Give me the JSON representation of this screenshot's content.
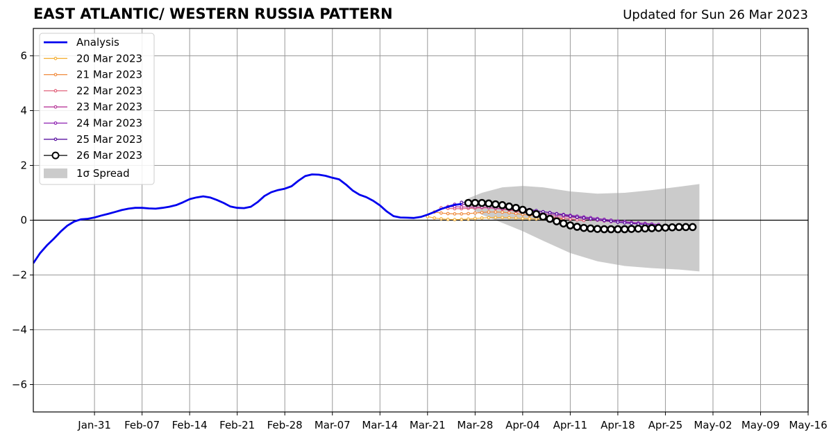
{
  "title": "EAST ATLANTIC/ WESTERN RUSSIA PATTERN",
  "updated": "Updated for Sun 26 Mar 2023",
  "chart_data": {
    "type": "line",
    "title": "EAST ATLANTIC/ WESTERN RUSSIA PATTERN",
    "xlabel": "",
    "ylabel": "",
    "xlim": [
      "2023-01-22",
      "2023-05-16"
    ],
    "ylim": [
      -7,
      7
    ],
    "grid": true,
    "legend_position": "top-left",
    "x_ticks": [
      "Jan-31",
      "Feb-07",
      "Feb-14",
      "Feb-21",
      "Feb-28",
      "Mar-07",
      "Mar-14",
      "Mar-21",
      "Mar-28",
      "Apr-04",
      "Apr-11",
      "Apr-18",
      "Apr-25",
      "May-02",
      "May-09",
      "May-16"
    ],
    "y_ticks": [
      "−6",
      "−4",
      "−2",
      "0",
      "2",
      "4",
      "6"
    ],
    "analysis": {
      "name": "Analysis",
      "color": "#0000ee",
      "start": "2023-01-22",
      "step_days": 1,
      "values": [
        -1.57,
        -1.2,
        -0.92,
        -0.68,
        -0.42,
        -0.2,
        -0.05,
        0.03,
        0.05,
        0.1,
        0.17,
        0.23,
        0.3,
        0.37,
        0.42,
        0.45,
        0.45,
        0.43,
        0.42,
        0.45,
        0.49,
        0.55,
        0.65,
        0.77,
        0.83,
        0.87,
        0.83,
        0.74,
        0.63,
        0.5,
        0.45,
        0.44,
        0.49,
        0.66,
        0.88,
        1.02,
        1.1,
        1.15,
        1.24,
        1.44,
        1.61,
        1.67,
        1.66,
        1.62,
        1.55,
        1.49,
        1.3,
        1.08,
        0.93,
        0.84,
        0.71,
        0.54,
        0.32,
        0.15,
        0.1,
        0.09,
        0.08,
        0.12,
        0.2,
        0.3,
        0.41,
        0.49,
        0.56,
        0.59
      ]
    },
    "forecasts": [
      {
        "name": "20 Mar 2023",
        "color": "#f4b13a",
        "start": "2023-03-21",
        "values": [
          0.13,
          0.08,
          0.05,
          0.03,
          0.02,
          0.03,
          0.04,
          0.06,
          0.08,
          0.09,
          0.1,
          0.1,
          0.09,
          0.08,
          0.06,
          0.05,
          0.05,
          0.04,
          0.03,
          0.02
        ]
      },
      {
        "name": "21 Mar 2023",
        "color": "#f08a3c",
        "start": "2023-03-22",
        "values": [
          0.3,
          0.26,
          0.24,
          0.23,
          0.23,
          0.24,
          0.26,
          0.28,
          0.3,
          0.3,
          0.29,
          0.27,
          0.24,
          0.21,
          0.18,
          0.15,
          0.12,
          0.09,
          0.06,
          0.04
        ]
      },
      {
        "name": "22 Mar 2023",
        "color": "#e0607a",
        "start": "2023-03-23",
        "values": [
          0.45,
          0.43,
          0.42,
          0.42,
          0.43,
          0.44,
          0.45,
          0.45,
          0.43,
          0.4,
          0.37,
          0.33,
          0.29,
          0.25,
          0.21,
          0.17,
          0.13,
          0.1,
          0.07,
          0.04,
          0.01,
          -0.01
        ]
      },
      {
        "name": "23 Mar 2023",
        "color": "#b83a9a",
        "start": "2023-03-24",
        "values": [
          0.5,
          0.49,
          0.48,
          0.48,
          0.48,
          0.47,
          0.46,
          0.44,
          0.42,
          0.39,
          0.36,
          0.33,
          0.3,
          0.27,
          0.24,
          0.21,
          0.18,
          0.15,
          0.12,
          0.09,
          0.06,
          0.03,
          0.0,
          -0.03,
          -0.05,
          -0.07,
          -0.09,
          -0.1,
          -0.11,
          -0.12
        ]
      },
      {
        "name": "24 Mar 2023",
        "color": "#8c1fb0",
        "start": "2023-03-25",
        "values": [
          0.58,
          0.58,
          0.57,
          0.56,
          0.55,
          0.53,
          0.51,
          0.49,
          0.46,
          0.43,
          0.4,
          0.37,
          0.34,
          0.31,
          0.28,
          0.24,
          0.21,
          0.18,
          0.15,
          0.12,
          0.09,
          0.06,
          0.03,
          0.0,
          -0.03,
          -0.05,
          -0.08,
          -0.1,
          -0.12,
          -0.14,
          -0.16
        ]
      },
      {
        "name": "25 Mar 2023",
        "color": "#5a12a0",
        "start": "2023-03-26",
        "values": [
          0.65,
          0.65,
          0.64,
          0.62,
          0.6,
          0.57,
          0.54,
          0.51,
          0.47,
          0.43,
          0.39,
          0.35,
          0.31,
          0.27,
          0.23,
          0.19,
          0.15,
          0.11,
          0.08,
          0.05,
          0.02,
          -0.01,
          -0.04,
          -0.07,
          -0.1,
          -0.12,
          -0.14,
          -0.16,
          -0.18,
          -0.2
        ]
      },
      {
        "name": "26 Mar 2023",
        "color": "#000000",
        "start": "2023-03-27",
        "values": [
          0.63,
          0.63,
          0.63,
          0.61,
          0.58,
          0.55,
          0.5,
          0.45,
          0.38,
          0.3,
          0.22,
          0.13,
          0.05,
          -0.04,
          -0.12,
          -0.19,
          -0.24,
          -0.28,
          -0.3,
          -0.32,
          -0.33,
          -0.33,
          -0.33,
          -0.33,
          -0.32,
          -0.31,
          -0.3,
          -0.29,
          -0.28,
          -0.27,
          -0.26,
          -0.25,
          -0.25,
          -0.25
        ]
      }
    ],
    "spread": {
      "name": "1σ Spread",
      "color": "#cbcbcb",
      "points": [
        {
          "date": "2023-03-27",
          "upper": 0.8,
          "lower": 0.5
        },
        {
          "date": "2023-03-29",
          "upper": 1.0,
          "lower": 0.2
        },
        {
          "date": "2023-04-01",
          "upper": 1.2,
          "lower": -0.1
        },
        {
          "date": "2023-04-04",
          "upper": 1.25,
          "lower": -0.4
        },
        {
          "date": "2023-04-07",
          "upper": 1.2,
          "lower": -0.75
        },
        {
          "date": "2023-04-11",
          "upper": 1.05,
          "lower": -1.2
        },
        {
          "date": "2023-04-15",
          "upper": 0.97,
          "lower": -1.5
        },
        {
          "date": "2023-04-19",
          "upper": 1.0,
          "lower": -1.67
        },
        {
          "date": "2023-04-23",
          "upper": 1.1,
          "lower": -1.75
        },
        {
          "date": "2023-04-27",
          "upper": 1.22,
          "lower": -1.8
        },
        {
          "date": "2023-04-30",
          "upper": 1.32,
          "lower": -1.87
        }
      ]
    }
  }
}
